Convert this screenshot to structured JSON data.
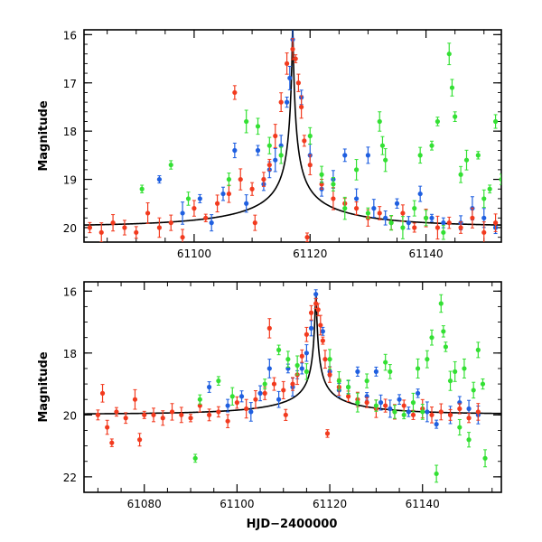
{
  "colors": {
    "blue": "#1f5fe0",
    "red": "#f23a1e",
    "green": "#33e033",
    "model": "#000000"
  },
  "chart_data": [
    {
      "type": "scatter",
      "title": "",
      "xlabel": "",
      "ylabel": "Magnitude",
      "xlim": [
        61081,
        61153
      ],
      "ylim": [
        20.3,
        15.9
      ],
      "y_inverted": true,
      "xticks": [
        61100,
        61120,
        61140
      ],
      "yticks": [
        16,
        17,
        18,
        19,
        20
      ],
      "peak": {
        "t0": 61117,
        "mag": 16.1
      },
      "series": [
        {
          "name": "blue",
          "color": "blue",
          "points": [
            [
              61094,
              19.0
            ],
            [
              61098,
              19.7
            ],
            [
              61101,
              19.4
            ],
            [
              61103,
              19.9
            ],
            [
              61105,
              19.3
            ],
            [
              61107,
              18.4
            ],
            [
              61109,
              19.5
            ],
            [
              61111,
              18.4
            ],
            [
              61112,
              19.1
            ],
            [
              61113,
              18.8
            ],
            [
              61114,
              18.6
            ],
            [
              61115,
              18.3
            ],
            [
              61116,
              17.4
            ],
            [
              61116.5,
              16.9
            ],
            [
              61117,
              16.1
            ],
            [
              61118.5,
              17.3
            ],
            [
              61120,
              18.5
            ],
            [
              61122,
              19.2
            ],
            [
              61124,
              19.0
            ],
            [
              61126,
              18.5
            ],
            [
              61128,
              19.4
            ],
            [
              61130,
              18.5
            ],
            [
              61131,
              19.6
            ],
            [
              61133,
              19.8
            ],
            [
              61135,
              19.5
            ],
            [
              61137,
              19.9
            ],
            [
              61139,
              19.3
            ],
            [
              61141,
              19.8
            ],
            [
              61143,
              19.9
            ],
            [
              61146,
              19.9
            ],
            [
              61148,
              19.6
            ],
            [
              61150,
              19.8
            ],
            [
              61152,
              20.0
            ]
          ]
        },
        {
          "name": "red",
          "color": "red",
          "points": [
            [
              61082,
              20.0
            ],
            [
              61084,
              20.1
            ],
            [
              61086,
              19.9
            ],
            [
              61088,
              20.0
            ],
            [
              61090,
              20.1
            ],
            [
              61092,
              19.7
            ],
            [
              61094,
              20.0
            ],
            [
              61096,
              19.9
            ],
            [
              61098,
              20.2
            ],
            [
              61100,
              19.6
            ],
            [
              61102,
              19.8
            ],
            [
              61104,
              19.5
            ],
            [
              61106,
              19.3
            ],
            [
              61107,
              17.2
            ],
            [
              61108,
              19.0
            ],
            [
              61110,
              19.2
            ],
            [
              61112,
              19.0
            ],
            [
              61113,
              18.7
            ],
            [
              61114,
              18.1
            ],
            [
              61115,
              17.4
            ],
            [
              61116,
              16.6
            ],
            [
              61117,
              16.3
            ],
            [
              61117.5,
              16.5
            ],
            [
              61118,
              17.0
            ],
            [
              61118.5,
              17.5
            ],
            [
              61119,
              18.2
            ],
            [
              61120,
              18.7
            ],
            [
              61122,
              19.1
            ],
            [
              61124,
              19.4
            ],
            [
              61126,
              19.5
            ],
            [
              61128,
              19.6
            ],
            [
              61130,
              19.8
            ],
            [
              61132,
              19.7
            ],
            [
              61134,
              19.9
            ],
            [
              61136,
              19.7
            ],
            [
              61138,
              20.0
            ],
            [
              61140,
              19.8
            ],
            [
              61142,
              20.0
            ],
            [
              61144,
              19.9
            ],
            [
              61146,
              20.0
            ],
            [
              61148,
              19.8
            ],
            [
              61150,
              20.1
            ],
            [
              61152,
              19.9
            ],
            [
              61119.5,
              20.2
            ],
            [
              61110.5,
              19.9
            ]
          ]
        },
        {
          "name": "green",
          "color": "green",
          "points": [
            [
              61091,
              19.2
            ],
            [
              61096,
              18.7
            ],
            [
              61099,
              19.4
            ],
            [
              61106,
              19.0
            ],
            [
              61109,
              17.8
            ],
            [
              61111,
              17.9
            ],
            [
              61113,
              18.3
            ],
            [
              61115,
              18.5
            ],
            [
              61120,
              18.1
            ],
            [
              61122,
              18.9
            ],
            [
              61124,
              19.1
            ],
            [
              61126,
              19.6
            ],
            [
              61128,
              18.8
            ],
            [
              61130,
              19.7
            ],
            [
              61132,
              17.8
            ],
            [
              61132.5,
              18.3
            ],
            [
              61133,
              18.6
            ],
            [
              61134,
              19.9
            ],
            [
              61136,
              20.0
            ],
            [
              61138,
              19.6
            ],
            [
              61139,
              18.5
            ],
            [
              61140,
              19.8
            ],
            [
              61141,
              18.3
            ],
            [
              61142,
              17.8
            ],
            [
              61143,
              20.1
            ],
            [
              61144,
              16.4
            ],
            [
              61144.5,
              17.1
            ],
            [
              61145,
              17.7
            ],
            [
              61146,
              18.9
            ],
            [
              61147,
              18.6
            ],
            [
              61149,
              18.5
            ],
            [
              61150,
              19.4
            ],
            [
              61151,
              19.2
            ],
            [
              61152,
              17.8
            ],
            [
              61153,
              19.0
            ]
          ]
        }
      ]
    },
    {
      "type": "scatter",
      "title": "",
      "xlabel": "HJD−2400000",
      "ylabel": "Magnitude",
      "xlim": [
        61067,
        61157
      ],
      "ylim": [
        22.5,
        15.7
      ],
      "y_inverted": true,
      "xticks": [
        61080,
        61100,
        61120,
        61140
      ],
      "yticks": [
        16,
        18,
        20,
        22
      ],
      "peak": {
        "t0": 61117,
        "mag": 16.1
      },
      "series": [
        {
          "name": "blue",
          "color": "blue",
          "points": [
            [
              61094,
              19.1
            ],
            [
              61098,
              19.7
            ],
            [
              61101,
              19.4
            ],
            [
              61103,
              19.9
            ],
            [
              61105,
              19.3
            ],
            [
              61107,
              18.5
            ],
            [
              61109,
              19.5
            ],
            [
              61111,
              18.5
            ],
            [
              61112,
              19.1
            ],
            [
              61113,
              18.7
            ],
            [
              61114,
              18.5
            ],
            [
              61115,
              18.0
            ],
            [
              61116,
              17.2
            ],
            [
              61117,
              16.1
            ],
            [
              61118.5,
              17.3
            ],
            [
              61120,
              18.6
            ],
            [
              61122,
              19.2
            ],
            [
              61124,
              19.1
            ],
            [
              61126,
              18.6
            ],
            [
              61128,
              19.4
            ],
            [
              61130,
              18.6
            ],
            [
              61131,
              19.6
            ],
            [
              61133,
              19.8
            ],
            [
              61135,
              19.5
            ],
            [
              61137,
              19.9
            ],
            [
              61139,
              19.3
            ],
            [
              61141,
              19.9
            ],
            [
              61143,
              20.3
            ],
            [
              61146,
              20.0
            ],
            [
              61148,
              19.6
            ],
            [
              61150,
              19.8
            ],
            [
              61152,
              20.0
            ]
          ]
        },
        {
          "name": "red",
          "color": "red",
          "points": [
            [
              61070,
              20.0
            ],
            [
              61071,
              19.3
            ],
            [
              61072,
              20.4
            ],
            [
              61073,
              20.9
            ],
            [
              61074,
              19.9
            ],
            [
              61076,
              20.1
            ],
            [
              61078,
              19.5
            ],
            [
              61079,
              20.8
            ],
            [
              61080,
              20.0
            ],
            [
              61082,
              20.0
            ],
            [
              61084,
              20.1
            ],
            [
              61086,
              19.9
            ],
            [
              61088,
              20.0
            ],
            [
              61090,
              20.1
            ],
            [
              61092,
              19.7
            ],
            [
              61094,
              20.0
            ],
            [
              61096,
              19.9
            ],
            [
              61098,
              20.2
            ],
            [
              61100,
              19.6
            ],
            [
              61102,
              19.8
            ],
            [
              61104,
              19.5
            ],
            [
              61106,
              19.3
            ],
            [
              61107,
              17.2
            ],
            [
              61108,
              19.0
            ],
            [
              61110,
              19.2
            ],
            [
              61112,
              19.0
            ],
            [
              61113,
              18.7
            ],
            [
              61114,
              18.1
            ],
            [
              61115,
              17.4
            ],
            [
              61116,
              16.7
            ],
            [
              61117,
              16.4
            ],
            [
              61117.5,
              16.6
            ],
            [
              61118,
              17.1
            ],
            [
              61118.5,
              17.6
            ],
            [
              61119,
              18.2
            ],
            [
              61120,
              18.7
            ],
            [
              61122,
              19.1
            ],
            [
              61124,
              19.4
            ],
            [
              61126,
              19.5
            ],
            [
              61128,
              19.6
            ],
            [
              61130,
              19.8
            ],
            [
              61132,
              19.7
            ],
            [
              61134,
              19.9
            ],
            [
              61136,
              19.7
            ],
            [
              61138,
              20.0
            ],
            [
              61140,
              19.8
            ],
            [
              61142,
              20.0
            ],
            [
              61144,
              19.9
            ],
            [
              61146,
              20.0
            ],
            [
              61148,
              19.8
            ],
            [
              61150,
              20.1
            ],
            [
              61152,
              19.9
            ],
            [
              61119.5,
              20.6
            ],
            [
              61110.5,
              20.0
            ]
          ]
        },
        {
          "name": "green",
          "color": "green",
          "points": [
            [
              61091,
              21.4
            ],
            [
              61092,
              19.5
            ],
            [
              61096,
              18.9
            ],
            [
              61099,
              19.4
            ],
            [
              61106,
              19.0
            ],
            [
              61109,
              17.9
            ],
            [
              61111,
              18.2
            ],
            [
              61113,
              18.4
            ],
            [
              61115,
              18.6
            ],
            [
              61120,
              18.2
            ],
            [
              61122,
              18.9
            ],
            [
              61124,
              19.1
            ],
            [
              61126,
              19.6
            ],
            [
              61128,
              18.9
            ],
            [
              61130,
              19.7
            ],
            [
              61132,
              18.3
            ],
            [
              61133,
              18.6
            ],
            [
              61134,
              19.9
            ],
            [
              61136,
              20.0
            ],
            [
              61138,
              19.6
            ],
            [
              61139,
              18.5
            ],
            [
              61140,
              19.9
            ],
            [
              61141,
              18.2
            ],
            [
              61142,
              17.5
            ],
            [
              61143,
              21.9
            ],
            [
              61144,
              16.4
            ],
            [
              61144.5,
              17.3
            ],
            [
              61145,
              17.8
            ],
            [
              61146,
              18.9
            ],
            [
              61147,
              18.6
            ],
            [
              61148,
              20.4
            ],
            [
              61149,
              18.5
            ],
            [
              61150,
              20.8
            ],
            [
              61151,
              19.2
            ],
            [
              61152,
              17.9
            ],
            [
              61153,
              19.0
            ],
            [
              61153.5,
              21.4
            ]
          ]
        }
      ]
    }
  ]
}
